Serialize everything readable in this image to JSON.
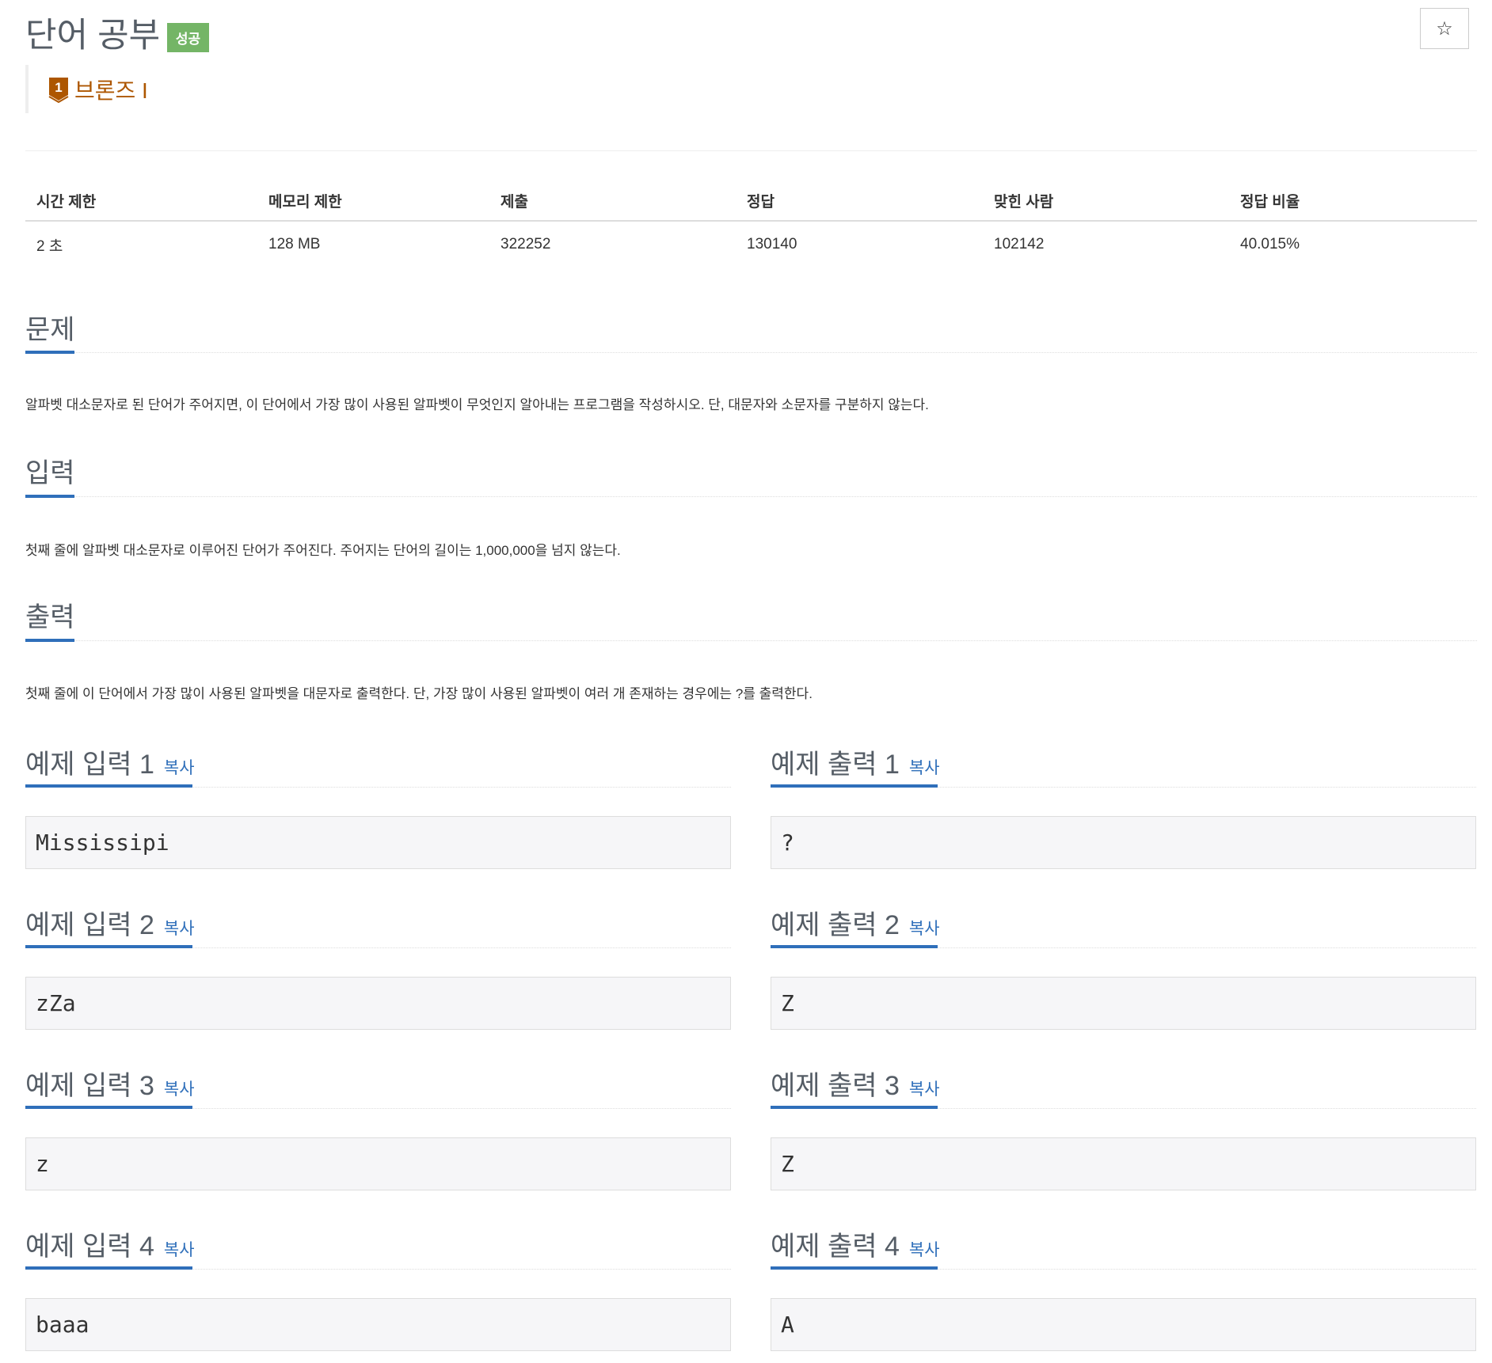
{
  "problem": {
    "title": "단어 공부",
    "status_badge": "성공",
    "tier": "브론즈 I",
    "tier_level": "1",
    "tier_color": "#ad5600",
    "star_icon": "star-outline-icon",
    "star_glyph": "☆"
  },
  "stats": {
    "headers": [
      "시간 제한",
      "메모리 제한",
      "제출",
      "정답",
      "맞힌 사람",
      "정답 비율"
    ],
    "values": [
      "2 초",
      "128 MB",
      "322252",
      "130140",
      "102142",
      "40.015%"
    ]
  },
  "sections": [
    {
      "heading": "문제",
      "text": "알파벳 대소문자로 된 단어가 주어지면, 이 단어에서 가장 많이 사용된 알파벳이 무엇인지 알아내는 프로그램을 작성하시오. 단, 대문자와 소문자를 구분하지 않는다."
    },
    {
      "heading": "입력",
      "text": "첫째 줄에 알파벳 대소문자로 이루어진 단어가 주어진다. 주어지는 단어의 길이는 1,000,000을 넘지 않는다."
    },
    {
      "heading": "출력",
      "text": "첫째 줄에 이 단어에서 가장 많이 사용된 알파벳을 대문자로 출력한다. 단, 가장 많이 사용된 알파벳이 여러 개 존재하는 경우에는 ?를 출력한다."
    }
  ],
  "copy_label": "복사",
  "samples": [
    {
      "input_heading": "예제 입력 1",
      "output_heading": "예제 출력 1",
      "input": "Mississipi",
      "output": "?"
    },
    {
      "input_heading": "예제 입력 2",
      "output_heading": "예제 출력 2",
      "input": "zZa",
      "output": "Z"
    },
    {
      "input_heading": "예제 입력 3",
      "output_heading": "예제 출력 3",
      "input": "z",
      "output": "Z"
    },
    {
      "input_heading": "예제 입력 4",
      "output_heading": "예제 출력 4",
      "input": "baaa",
      "output": "A"
    }
  ]
}
